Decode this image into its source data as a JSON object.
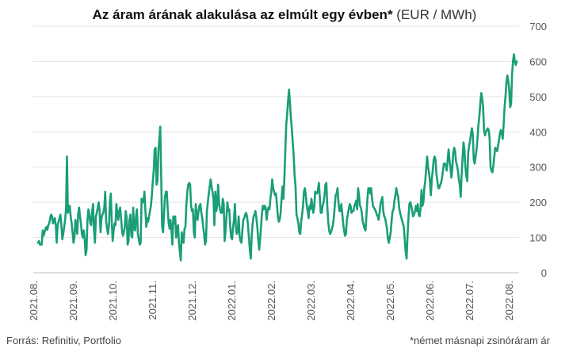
{
  "chart_data": {
    "type": "line",
    "title": "Az áram árának alakulása az elmúlt egy évben*",
    "unit": "(EUR / MWh)",
    "xlabel": "",
    "ylabel": "",
    "ylim": [
      0,
      700
    ],
    "yticks": [
      0,
      100,
      200,
      300,
      400,
      500,
      600,
      700
    ],
    "y_axis_position": "right",
    "grid": "horizontal",
    "legend": "none",
    "x_tick_labels": [
      "2021.08.",
      "2021.09.",
      "2021.10.",
      "2021.11.",
      "2021.12.",
      "2022.01.",
      "2022.02.",
      "2022.03.",
      "2022.04.",
      "2022.05.",
      "2022.06.",
      "2022.07.",
      "2022.08."
    ],
    "line_color": "#1a9e77",
    "series": [
      {
        "values": [
          85,
          90,
          80,
          80,
          80,
          120,
          105,
          115,
          125,
          130,
          122,
          135,
          140,
          155,
          165,
          160,
          140,
          148,
          155,
          135,
          85,
          135,
          145,
          155,
          165,
          135,
          95,
          110,
          130,
          150,
          180,
          330,
          170,
          185,
          190,
          160,
          140,
          115,
          85,
          100,
          150,
          135,
          110,
          165,
          185,
          160,
          140,
          110,
          100,
          120,
          95,
          50,
          65,
          150,
          180,
          165,
          140,
          135,
          175,
          195,
          120,
          85,
          160,
          170,
          185,
          200,
          175,
          115,
          155,
          165,
          170,
          185,
          230,
          145,
          125,
          110,
          135,
          200,
          225,
          145,
          90,
          120,
          140,
          135,
          195,
          170,
          150,
          175,
          185,
          155,
          120,
          105,
          115,
          130,
          175,
          155,
          80,
          90,
          150,
          165,
          105,
          100,
          185,
          125,
          120,
          160,
          180,
          110,
          95,
          80,
          85,
          210,
          200,
          200,
          230,
          180,
          130,
          155,
          145,
          160,
          175,
          190,
          220,
          260,
          290,
          350,
          355,
          250,
          260,
          345,
          380,
          415,
          270,
          130,
          115,
          165,
          215,
          230,
          230,
          180,
          140,
          125,
          150,
          120,
          80,
          160,
          140,
          160,
          100,
          120,
          135,
          85,
          60,
          35,
          115,
          95,
          85,
          125,
          130,
          195,
          230,
          250,
          255,
          250,
          190,
          175,
          180,
          115,
          100,
          195,
          165,
          150,
          175,
          190,
          195,
          170,
          155,
          130,
          110,
          80,
          90,
          175,
          200,
          225,
          245,
          265,
          245,
          230,
          210,
          135,
          230,
          175,
          190,
          250,
          200,
          180,
          170,
          170,
          210,
          195,
          90,
          120,
          160,
          200,
          175,
          180,
          130,
          100,
          95,
          130,
          150,
          195,
          130,
          110,
          120,
          160,
          105,
          90,
          85,
          120,
          150,
          155,
          165,
          170,
          160,
          135,
          100,
          65,
          40,
          105,
          140,
          160,
          165,
          175,
          155,
          130,
          95,
          65,
          95,
          130,
          170,
          190,
          180,
          190,
          185,
          150,
          175,
          185,
          180,
          210,
          230,
          265,
          240,
          230,
          220,
          225,
          195,
          160,
          145,
          150,
          170,
          210,
          245,
          210,
          265,
          345,
          420,
          450,
          490,
          520,
          480,
          440,
          410,
          370,
          330,
          275,
          245,
          165,
          155,
          140,
          115,
          110,
          145,
          165,
          190,
          230,
          240,
          220,
          190,
          175,
          155,
          190,
          180,
          210,
          190,
          170,
          185,
          230,
          225,
          225,
          235,
          255,
          215,
          170,
          170,
          190,
          200,
          220,
          250,
          255,
          190,
          145,
          120,
          110,
          115,
          125,
          135,
          155,
          190,
          220,
          225,
          240,
          200,
          175,
          175,
          195,
          170,
          140,
          120,
          105,
          110,
          150,
          165,
          180,
          195,
          190,
          170,
          175,
          175,
          190,
          195,
          205,
          180,
          240,
          220,
          190,
          185,
          170,
          145,
          135,
          125,
          120,
          165,
          210,
          240,
          240,
          225,
          240,
          210,
          190,
          185,
          180,
          175,
          165,
          160,
          150,
          170,
          195,
          205,
          215,
          175,
          160,
          155,
          140,
          125,
          95,
          85,
          100,
          115,
          150,
          175,
          180,
          205,
          220,
          240,
          225,
          215,
          185,
          170,
          160,
          150,
          140,
          130,
          95,
          60,
          40,
          105,
          155,
          195,
          200,
          190,
          175,
          160,
          165,
          175,
          190,
          175,
          195,
          165,
          160,
          185,
          235,
          190,
          200,
          240,
          260,
          295,
          330,
          300,
          285,
          260,
          220,
          265,
          290,
          320,
          330,
          320,
          280,
          260,
          240,
          240,
          250,
          255,
          270,
          290,
          310,
          310,
          305,
          290,
          320,
          350,
          320,
          300,
          270,
          295,
          340,
          355,
          345,
          315,
          305,
          290,
          265,
          250,
          215,
          280,
          325,
          370,
          350,
          300,
          275,
          260,
          340,
          360,
          375,
          395,
          410,
          390,
          320,
          310,
          330,
          350,
          380,
          420,
          445,
          480,
          510,
          495,
          470,
          405,
          390,
          400,
          405,
          410,
          405,
          380,
          300,
          290,
          285,
          305,
          330,
          355,
          350,
          345,
          360,
          375,
          395,
          405,
          395,
          380,
          420,
          470,
          500,
          540,
          560,
          545,
          520,
          470,
          480,
          560,
          600,
          620,
          600,
          590,
          600
        ]
      }
    ]
  },
  "footer": {
    "source": "Forrás: Refinitiv, Portfolio",
    "note": "*német másnapi zsinóráram ár"
  }
}
